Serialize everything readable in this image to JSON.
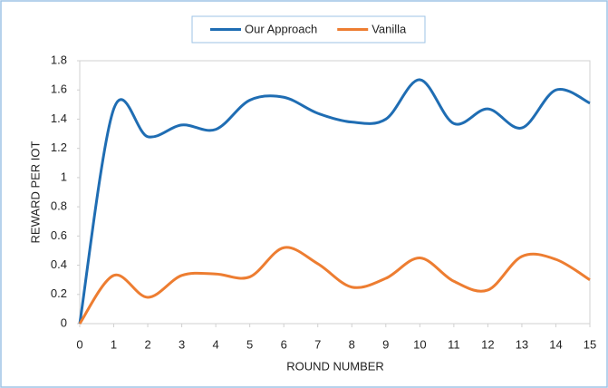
{
  "chart_data": {
    "type": "line",
    "x_label": "ROUND NUMBER",
    "y_label": "REWARD PER IOT",
    "x": [
      0,
      1,
      2,
      3,
      4,
      5,
      6,
      7,
      8,
      9,
      10,
      11,
      12,
      13,
      14,
      15
    ],
    "series": [
      {
        "name": "Our Approach",
        "color": "#1f6db3",
        "values": [
          0,
          1.47,
          1.28,
          1.36,
          1.33,
          1.53,
          1.55,
          1.44,
          1.38,
          1.4,
          1.67,
          1.37,
          1.47,
          1.34,
          1.6,
          1.51
        ]
      },
      {
        "name": "Vanilla",
        "color": "#ed7d31",
        "values": [
          0,
          0.33,
          0.18,
          0.33,
          0.34,
          0.32,
          0.52,
          0.41,
          0.25,
          0.31,
          0.45,
          0.29,
          0.23,
          0.46,
          0.44,
          0.3
        ]
      }
    ],
    "xlim": [
      0,
      15
    ],
    "xticks": [
      0,
      1,
      2,
      3,
      4,
      5,
      6,
      7,
      8,
      9,
      10,
      11,
      12,
      13,
      14,
      15
    ],
    "ylim": [
      0,
      1.8
    ],
    "yticks": [
      0,
      0.2,
      0.4,
      0.6,
      0.8,
      1,
      1.2,
      1.4,
      1.6,
      1.8
    ],
    "grid": false,
    "smooth": true,
    "legend": "top"
  }
}
